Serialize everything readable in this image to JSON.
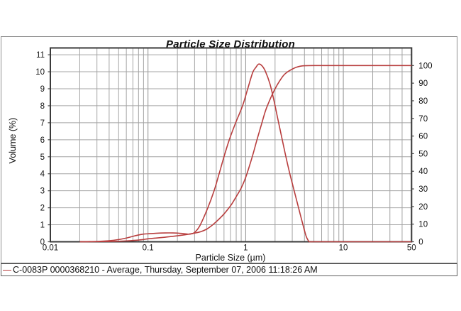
{
  "title": "Particle Size Distribution",
  "legend": {
    "sample_line_color": "#b83e3e",
    "label": "C-0083P 0000368210 - Average, Thursday, September 07, 2006 11:18:26 AM"
  },
  "colors": {
    "curve": "#b83e3e",
    "grid_minor": "#a4a4a4",
    "grid_decade": "#909090",
    "frame": "#3a3a3a",
    "text": "#111111",
    "outer_border": "#8f8f8f"
  },
  "chart_data": {
    "type": "line",
    "title": "Particle Size Distribution",
    "xlabel": "Particle Size (µm)",
    "ylabel_left": "Volume (%)",
    "x_scale": "log",
    "xlim": [
      0.01,
      50
    ],
    "ylim_left": [
      0,
      11.4
    ],
    "ylim_right": [
      0,
      110
    ],
    "x_tick_labels": [
      "0.01",
      "0.1",
      "1",
      "10",
      "50"
    ],
    "x_tick_values": [
      0.01,
      0.1,
      1,
      10,
      50
    ],
    "y_ticks_left": [
      0,
      1,
      2,
      3,
      4,
      5,
      6,
      7,
      8,
      9,
      10,
      11
    ],
    "y_ticks_right": [
      0,
      10,
      20,
      30,
      40,
      50,
      60,
      70,
      80,
      90,
      100
    ],
    "grid": true,
    "legend_position": "bottom",
    "series": [
      {
        "name": "volume_density_percent",
        "axis": "left",
        "x": [
          0.02,
          0.03,
          0.04,
          0.05,
          0.06,
          0.07,
          0.08,
          0.09,
          0.1,
          0.12,
          0.15,
          0.18,
          0.21,
          0.24,
          0.27,
          0.3,
          0.34,
          0.41,
          0.475,
          0.535,
          0.6,
          0.68,
          0.79,
          0.93,
          1.05,
          1.18,
          1.27,
          1.36,
          1.47,
          1.585,
          1.77,
          1.95,
          2.13,
          2.33,
          2.56,
          2.82,
          3.14,
          3.48,
          3.86,
          4.15,
          4.35,
          4.5,
          5.0,
          10.0,
          50.0
        ],
        "y": [
          0,
          0.02,
          0.06,
          0.13,
          0.22,
          0.32,
          0.4,
          0.45,
          0.47,
          0.5,
          0.52,
          0.52,
          0.5,
          0.47,
          0.45,
          0.55,
          0.95,
          2.0,
          3.0,
          4.0,
          5.0,
          6.0,
          7.0,
          8.0,
          9.0,
          9.95,
          10.25,
          10.45,
          10.35,
          10.05,
          9.3,
          8.3,
          7.25,
          6.2,
          5.1,
          4.05,
          3.0,
          2.0,
          1.0,
          0.35,
          0.1,
          0,
          0,
          0,
          0
        ]
      },
      {
        "name": "cumulative_volume_percent",
        "axis": "right",
        "x": [
          0.02,
          0.03,
          0.04,
          0.05,
          0.06,
          0.07,
          0.08,
          0.09,
          0.1,
          0.12,
          0.15,
          0.18,
          0.22,
          0.26,
          0.3,
          0.35,
          0.4,
          0.45,
          0.5,
          0.55,
          0.6,
          0.66,
          0.72,
          0.8,
          0.9,
          1.0,
          1.1,
          1.2,
          1.3,
          1.45,
          1.6,
          1.8,
          2.0,
          2.2,
          2.45,
          2.7,
          3.0,
          3.3,
          3.6,
          4.0,
          5.0,
          10.0,
          50.0
        ],
        "y": [
          0,
          0.05,
          0.15,
          0.3,
          0.5,
          0.75,
          1.0,
          1.3,
          1.7,
          2.1,
          2.6,
          3.1,
          3.7,
          4.3,
          4.9,
          5.8,
          7.2,
          9.2,
          11.4,
          13.6,
          15.8,
          18.6,
          21.4,
          25.6,
          30.5,
          36.5,
          43.5,
          50.5,
          57.5,
          66.5,
          74.5,
          81.5,
          86.8,
          90.8,
          94.5,
          96.5,
          98.0,
          99.0,
          99.6,
          99.9,
          100,
          100,
          100
        ]
      }
    ]
  }
}
